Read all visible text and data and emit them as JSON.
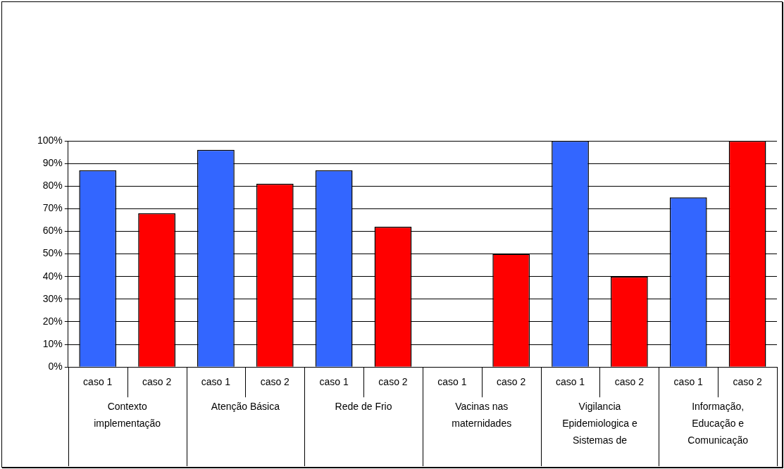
{
  "chart_data": {
    "type": "bar",
    "categories": [
      "caso 1",
      "caso 2",
      "caso 1",
      "caso 2",
      "caso 1",
      "caso 2",
      "caso 1",
      "caso 2",
      "caso 1",
      "caso 2",
      "caso 1",
      "caso 2"
    ],
    "values": [
      87,
      68,
      96,
      81,
      87,
      62,
      0,
      50,
      100,
      40,
      75,
      100
    ],
    "colors": [
      "#3366ff",
      "#ff0000",
      "#3366ff",
      "#ff0000",
      "#3366ff",
      "#ff0000",
      "#3366ff",
      "#ff0000",
      "#3366ff",
      "#ff0000",
      "#3366ff",
      "#ff0000"
    ],
    "annotations": [
      "Contexto implementação",
      "Atenção Básica",
      "Rede de Frio",
      "Vacinas nas maternidades",
      "Vigilancia Epidemiologica e Sistemas de",
      "Informação, Educação e Comunicação"
    ],
    "ylim": [
      0,
      100
    ],
    "yticks": [
      {
        "value": 0,
        "label": "0%"
      },
      {
        "value": 10,
        "label": "10%"
      },
      {
        "value": 20,
        "label": "20%"
      },
      {
        "value": 30,
        "label": "30%"
      },
      {
        "value": 40,
        "label": "40%"
      },
      {
        "value": 50,
        "label": "50%"
      },
      {
        "value": 60,
        "label": "60%"
      },
      {
        "value": 70,
        "label": "70%"
      },
      {
        "value": 80,
        "label": "80%"
      },
      {
        "value": 90,
        "label": "90%"
      },
      {
        "value": 100,
        "label": "100%"
      }
    ],
    "grid": "y",
    "legend": false
  }
}
